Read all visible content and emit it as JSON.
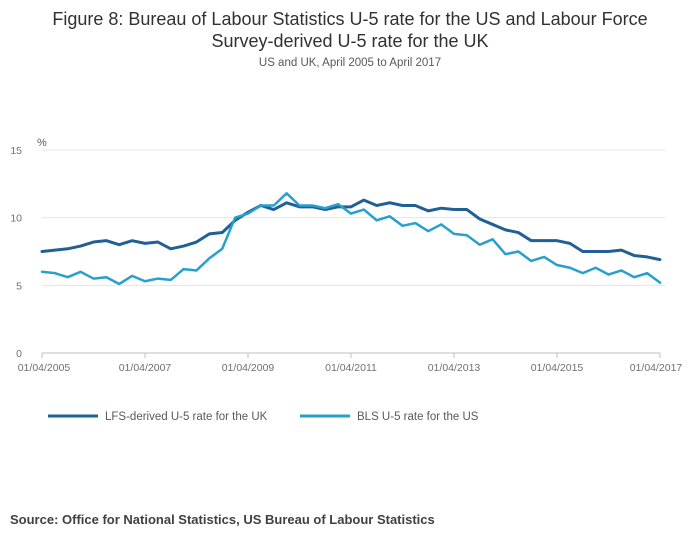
{
  "title_lines": [
    "Figure 8: Bureau of Labour Statistics U-5 rate for the US and Labour Force",
    "Survey-derived U-5 rate for the UK"
  ],
  "subtitle": "US and UK, April 2005 to April 2017",
  "source": "Source: Office for National Statistics, US Bureau of Labour Statistics",
  "chart_data": {
    "type": "line",
    "title": "Figure 8: Bureau of Labour Statistics U-5 rate for the US and Labour Force Survey-derived U-5 rate for the UK",
    "subtitle": "US and UK, April 2005 to April 2017",
    "ylabel": "%",
    "xlabel": "",
    "ylim": [
      0,
      15
    ],
    "yticks": [
      0,
      5,
      10,
      15
    ],
    "xlim": [
      2005.25,
      2017.25
    ],
    "xticks": [
      {
        "x": 2005.25,
        "label": "01/04/2005"
      },
      {
        "x": 2007.25,
        "label": "01/04/2007"
      },
      {
        "x": 2009.25,
        "label": "01/04/2009"
      },
      {
        "x": 2011.25,
        "label": "01/04/2011"
      },
      {
        "x": 2013.25,
        "label": "01/04/2013"
      },
      {
        "x": 2015.25,
        "label": "01/04/2015"
      },
      {
        "x": 2017.25,
        "label": "01/04/2017"
      }
    ],
    "grid": true,
    "legend_position": "bottom",
    "x_start": 2005.25,
    "x_step": 0.25,
    "series": [
      {
        "name": "LFS-derived U-5 rate for the UK",
        "color": "#206095",
        "values": [
          7.5,
          7.6,
          7.7,
          7.9,
          8.2,
          8.3,
          8.0,
          8.3,
          8.1,
          8.2,
          7.7,
          7.9,
          8.2,
          8.8,
          8.9,
          9.8,
          10.4,
          10.9,
          10.6,
          11.1,
          10.8,
          10.8,
          10.6,
          10.8,
          10.8,
          11.3,
          10.9,
          11.1,
          10.9,
          10.9,
          10.5,
          10.7,
          10.6,
          10.6,
          9.9,
          9.5,
          9.1,
          8.9,
          8.3,
          8.3,
          8.3,
          8.1,
          7.5,
          7.5,
          7.5,
          7.6,
          7.2,
          7.1,
          6.9
        ]
      },
      {
        "name": "BLS U-5 rate for the US",
        "color": "#27a0cc",
        "values": [
          6.0,
          5.9,
          5.6,
          6.0,
          5.5,
          5.6,
          5.1,
          5.7,
          5.3,
          5.5,
          5.4,
          6.2,
          6.1,
          7.0,
          7.7,
          10.0,
          10.3,
          10.9,
          10.9,
          11.8,
          10.9,
          10.9,
          10.7,
          11.0,
          10.3,
          10.6,
          9.8,
          10.1,
          9.4,
          9.6,
          9.0,
          9.5,
          8.8,
          8.7,
          8.0,
          8.4,
          7.3,
          7.5,
          6.8,
          7.1,
          6.5,
          6.3,
          5.9,
          6.3,
          5.8,
          6.1,
          5.6,
          5.9,
          5.2
        ]
      }
    ]
  }
}
